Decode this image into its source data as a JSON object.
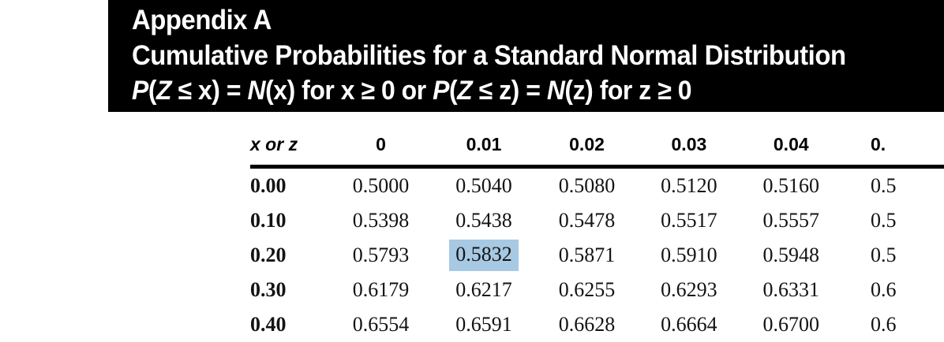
{
  "banner": {
    "background": "#000000",
    "text_color": "#ffffff",
    "title": "Appendix A",
    "subtitle": "Cumulative Probabilities for a Standard Normal Distribution",
    "formula_segments": [
      {
        "text": "P",
        "italic": true
      },
      {
        "text": "(",
        "italic": false
      },
      {
        "text": "Z",
        "italic": true
      },
      {
        "text": " ≤ x) = ",
        "italic": false
      },
      {
        "text": "N",
        "italic": true
      },
      {
        "text": "(x) for x ≥ 0 or ",
        "italic": false
      },
      {
        "text": "P",
        "italic": true
      },
      {
        "text": "(",
        "italic": false
      },
      {
        "text": "Z",
        "italic": true
      },
      {
        "text": " ≤ z) = ",
        "italic": false
      },
      {
        "text": "N",
        "italic": true
      },
      {
        "text": "(z) for z ≥ 0",
        "italic": false
      }
    ]
  },
  "table": {
    "corner_label": "x or z",
    "column_headers": [
      "0",
      "0.01",
      "0.02",
      "0.03",
      "0.04",
      "0."
    ],
    "rows": [
      {
        "label": "0.00",
        "values": [
          "0.5000",
          "0.5040",
          "0.5080",
          "0.5120",
          "0.5160",
          "0.5"
        ]
      },
      {
        "label": "0.10",
        "values": [
          "0.5398",
          "0.5438",
          "0.5478",
          "0.5517",
          "0.5557",
          "0.5"
        ]
      },
      {
        "label": "0.20",
        "values": [
          "0.5793",
          "0.5832",
          "0.5871",
          "0.5910",
          "0.5948",
          "0.5"
        ]
      },
      {
        "label": "0.30",
        "values": [
          "0.6179",
          "0.6217",
          "0.6255",
          "0.6293",
          "0.6331",
          "0.6"
        ]
      },
      {
        "label": "0.40",
        "values": [
          "0.6554",
          "0.6591",
          "0.6628",
          "0.6664",
          "0.6700",
          "0.6"
        ]
      }
    ],
    "highlight": {
      "row_index": 2,
      "col_index": 1,
      "value": "0.5832",
      "color": "#a7c9e3"
    }
  }
}
